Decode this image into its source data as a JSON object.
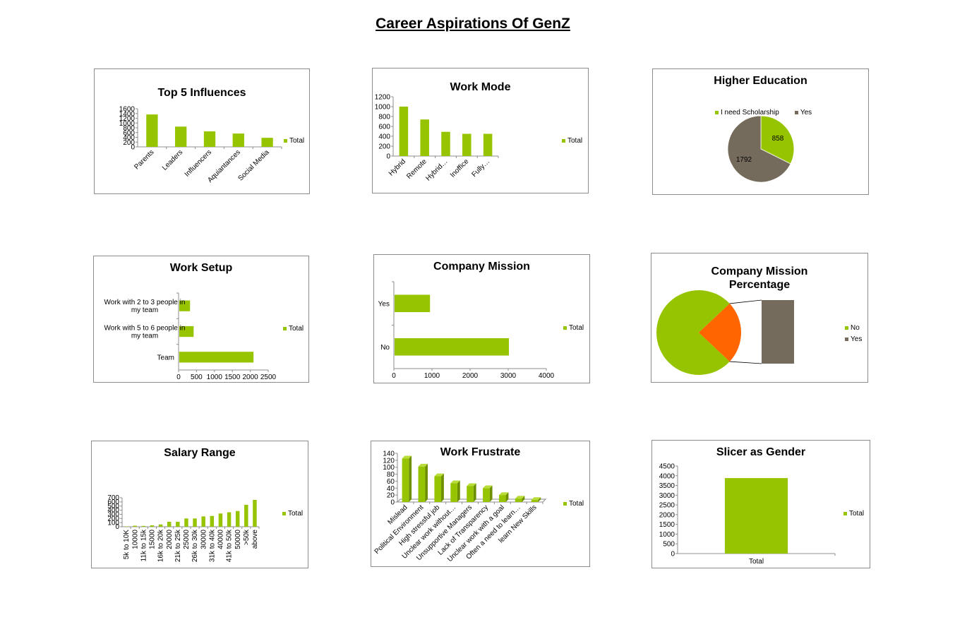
{
  "page": {
    "title": "Career Aspirations Of GenZ"
  },
  "colors": {
    "green": "#97c400",
    "gray": "#756b5c",
    "orange": "#ff6600",
    "axis": "#8c8c8c"
  },
  "charts": {
    "influences": {
      "title": "Top 5 Influences",
      "legend": [
        "Total"
      ],
      "chart_data": {
        "type": "bar",
        "categories": [
          "Parents",
          "Leaders",
          "Influencers",
          "Aquiantances",
          "Social Media"
        ],
        "series": [
          {
            "name": "Total",
            "values": [
              1360,
              850,
              650,
              560,
              380
            ]
          }
        ],
        "ylim": [
          0,
          1600
        ],
        "yticks": [
          "0",
          "200",
          "400",
          "600",
          "800",
          "1000",
          "1200",
          "1400",
          "1600"
        ]
      }
    },
    "work_mode": {
      "title": "Work  Mode",
      "legend": [
        "Total"
      ],
      "chart_data": {
        "type": "bar",
        "categories": [
          "Hybrid",
          "Remote",
          "Hybrid…",
          "Inoffice",
          "Fully…"
        ],
        "series": [
          {
            "name": "Total",
            "values": [
              1000,
              740,
              490,
              450,
              450
            ]
          }
        ],
        "ylim": [
          0,
          1200
        ],
        "yticks": [
          "0",
          "200",
          "400",
          "600",
          "800",
          "1000",
          "1200"
        ]
      }
    },
    "higher_education": {
      "title": "Higher  Education",
      "legend": [
        "I need Scholarship",
        "Yes"
      ],
      "chart_data": {
        "type": "pie",
        "labels": [
          "I need Scholarship",
          "Yes"
        ],
        "values": [
          858,
          1792
        ],
        "data_labels": [
          "858",
          "1792"
        ]
      }
    },
    "work_setup": {
      "title": "Work Setup",
      "legend": [
        "Total"
      ],
      "chart_data": {
        "type": "bar",
        "orientation": "horizontal",
        "categories": [
          "Work with 2 to 3 people in my team",
          "Work with 5 to 6 people in my team",
          "Team"
        ],
        "category_lines": [
          [
            "Work with 2 to 3 people in",
            "my team"
          ],
          [
            "Work with 5 to 6 people in",
            "my team"
          ],
          [
            "Team"
          ]
        ],
        "series": [
          {
            "name": "Total",
            "values": [
              300,
              400,
              2070
            ]
          }
        ],
        "xlim": [
          0,
          2500
        ],
        "xticks": [
          "0",
          "500",
          "1000",
          "1500",
          "2000",
          "2500"
        ]
      }
    },
    "company_mission": {
      "title": "Company Mission",
      "legend": [
        "Total"
      ],
      "chart_data": {
        "type": "bar",
        "orientation": "horizontal",
        "categories": [
          "Yes",
          "No"
        ],
        "series": [
          {
            "name": "Total",
            "values": [
              930,
              3000
            ]
          }
        ],
        "xlim": [
          0,
          4000
        ],
        "xticks": [
          "0",
          "1000",
          "2000",
          "3000",
          "4000"
        ]
      }
    },
    "mission_percentage": {
      "title_lines": [
        "Company Mission",
        "Percentage"
      ],
      "legend": [
        "No",
        "Yes"
      ],
      "chart_data": {
        "type": "pie",
        "labels": [
          "No",
          "Yes"
        ],
        "values": [
          76,
          24
        ]
      }
    },
    "salary": {
      "title": "Salary Range",
      "legend": [
        "Total"
      ],
      "chart_data": {
        "type": "bar",
        "categories": [
          "5k to 10K",
          "10000",
          "11k to 15k",
          "15000",
          "16k to 20k",
          "20000",
          "21k to 25k",
          "25000",
          "26k to 30k",
          "30000",
          "31k to 40k",
          "40000",
          "41k to 50k",
          "50000",
          ">50k",
          "above"
        ],
        "series": [
          {
            "name": "Total",
            "values": [
              8,
              25,
              20,
              35,
              55,
              120,
              120,
              200,
              200,
              250,
              260,
              320,
              350,
              380,
              530,
              650
            ]
          }
        ],
        "ylim": [
          0,
          700
        ],
        "yticks": [
          "0",
          "100",
          "200",
          "300",
          "400",
          "500",
          "600",
          "700"
        ]
      }
    },
    "frustrate": {
      "title": "Work  Frustrate",
      "legend": [
        "Total"
      ],
      "chart_data": {
        "type": "bar",
        "categories": [
          "Mislead",
          "Political Environment",
          "High stressful job",
          "Unclear work without…",
          "Unsupportive Managers",
          "Lack of Transparency",
          "Unclear work with a goal",
          "Often a need to learn…",
          "learn New Skills"
        ],
        "series": [
          {
            "name": "Total",
            "values": [
              125,
              102,
              74,
              54,
              46,
              40,
              20,
              10,
              6
            ]
          }
        ],
        "ylim": [
          0,
          140
        ],
        "yticks": [
          "0",
          "20",
          "40",
          "60",
          "80",
          "100",
          "120",
          "140"
        ]
      }
    },
    "gender": {
      "title": "Slicer as Gender",
      "legend": [
        "Total"
      ],
      "chart_data": {
        "type": "bar",
        "categories": [
          "Total"
        ],
        "series": [
          {
            "name": "Total",
            "values": [
              3880
            ]
          }
        ],
        "ylim": [
          0,
          4500
        ],
        "yticks": [
          "0",
          "500",
          "1000",
          "1500",
          "2000",
          "2500",
          "3000",
          "3500",
          "4000",
          "4500"
        ]
      }
    }
  }
}
